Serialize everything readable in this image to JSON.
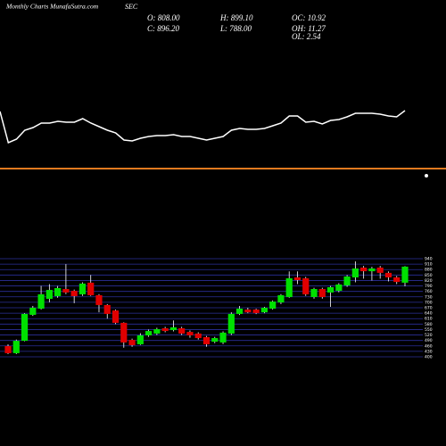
{
  "header": {
    "title": "Monthly Charts MunafaSutra.com",
    "symbol": "SEC",
    "stats": [
      "O: 808.00",
      "H: 899.10",
      "OC: 10.92",
      "C: 896.20",
      "L: 788.00",
      "OH: 11.27",
      "OL: 2.54"
    ]
  },
  "chart_data": [
    {
      "type": "line",
      "color": "#ffffff",
      "ylim": [
        0,
        110
      ],
      "values": [
        100,
        30,
        38,
        58,
        64,
        74,
        74,
        78,
        76,
        76,
        84,
        74,
        66,
        58,
        52,
        36,
        34,
        40,
        44,
        46,
        46,
        48,
        44,
        44,
        40,
        36,
        40,
        44,
        58,
        62,
        60,
        60,
        62,
        68,
        74,
        90,
        90,
        76,
        78,
        72,
        80,
        82,
        88,
        96,
        96,
        96,
        94,
        90,
        88,
        102
      ]
    },
    {
      "type": "candlestick",
      "up_color": "#00e000",
      "down_color": "#e00000",
      "wick_color": "#ffffff",
      "grid_color": "#2b2f9a",
      "ylim": [
        400,
        940
      ],
      "yticks": [
        400,
        430,
        460,
        490,
        520,
        550,
        580,
        610,
        640,
        670,
        700,
        730,
        760,
        790,
        820,
        850,
        880,
        910,
        940
      ],
      "open": [
        459,
        420,
        488,
        631,
        665,
        719,
        734,
        773,
        763,
        744,
        808,
        739,
        685,
        655,
        587,
        493,
        469,
        518,
        528,
        557,
        547,
        557,
        537,
        528,
        508,
        483,
        479,
        528,
        636,
        660,
        660,
        645,
        665,
        699,
        729,
        837,
        832,
        729,
        773,
        754,
        763,
        793,
        837,
        891,
        871,
        891,
        862,
        837,
        808
      ],
      "high": [
        469,
        495,
        640,
        680,
        790,
        800,
        790,
        910,
        770,
        810,
        850,
        745,
        690,
        660,
        590,
        500,
        530,
        550,
        560,
        565,
        600,
        565,
        545,
        535,
        515,
        510,
        540,
        645,
        680,
        670,
        665,
        675,
        710,
        745,
        870,
        870,
        840,
        780,
        780,
        790,
        805,
        850,
        925,
        900,
        895,
        900,
        870,
        845,
        899.1
      ],
      "low": [
        415,
        415,
        485,
        625,
        660,
        700,
        725,
        745,
        695,
        735,
        735,
        645,
        610,
        580,
        450,
        455,
        465,
        510,
        520,
        535,
        540,
        520,
        505,
        495,
        455,
        475,
        470,
        520,
        630,
        640,
        635,
        640,
        660,
        690,
        725,
        800,
        735,
        720,
        720,
        675,
        755,
        785,
        810,
        830,
        820,
        830,
        815,
        800,
        788
      ],
      "close": [
        420,
        488,
        636,
        670,
        744,
        768,
        778,
        754,
        734,
        803,
        739,
        685,
        636,
        587,
        479,
        464,
        518,
        542,
        552,
        542,
        562,
        528,
        518,
        503,
        469,
        503,
        533,
        636,
        665,
        645,
        641,
        670,
        704,
        739,
        832,
        822,
        744,
        773,
        729,
        783,
        798,
        842,
        886,
        871,
        886,
        862,
        837,
        812,
        896.2
      ]
    }
  ]
}
